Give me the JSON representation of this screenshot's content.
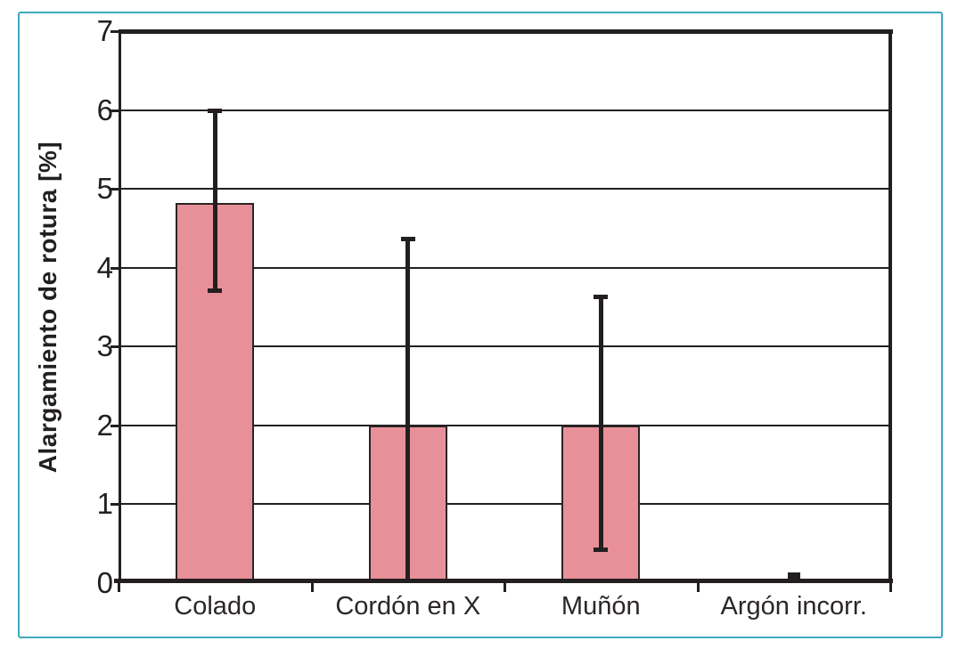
{
  "figure": {
    "kind": "statistical bar chart with error bars",
    "frame_note": "thin teal rounded rectangle border around white figure"
  },
  "colors": {
    "frame_teal": "#3FA9BC",
    "ink": "#231F20",
    "bar_fill": "#E89099",
    "bar_border": "#2B2324",
    "label_text": "#2B2627"
  },
  "chart_data": {
    "type": "bar",
    "title": "",
    "xlabel": "",
    "ylabel": "Alargamiento de rotura [%]",
    "ylim": [
      0,
      7
    ],
    "yticks": [
      0,
      1,
      2,
      3,
      4,
      5,
      6,
      7
    ],
    "grid": "horizontal gridlines at each integer, heavy line at top (7) and bottom (0)",
    "legend_position": "none",
    "categories": [
      "Colado",
      "Cordón en X",
      "Muñón",
      "Argón incorr."
    ],
    "series": [
      {
        "name": "Alargamiento de rotura [%]",
        "values": [
          4.82,
          2.0,
          2.0,
          0.05
        ]
      }
    ],
    "error_bars": {
      "low": [
        3.7,
        0.0,
        0.42,
        null
      ],
      "high": [
        6.0,
        4.37,
        3.64,
        null
      ]
    },
    "notes": "Argón incorr. shows only a tiny black mark at ~0 instead of a bar; Cordón en X lower error whisker reaches the baseline (0)"
  }
}
